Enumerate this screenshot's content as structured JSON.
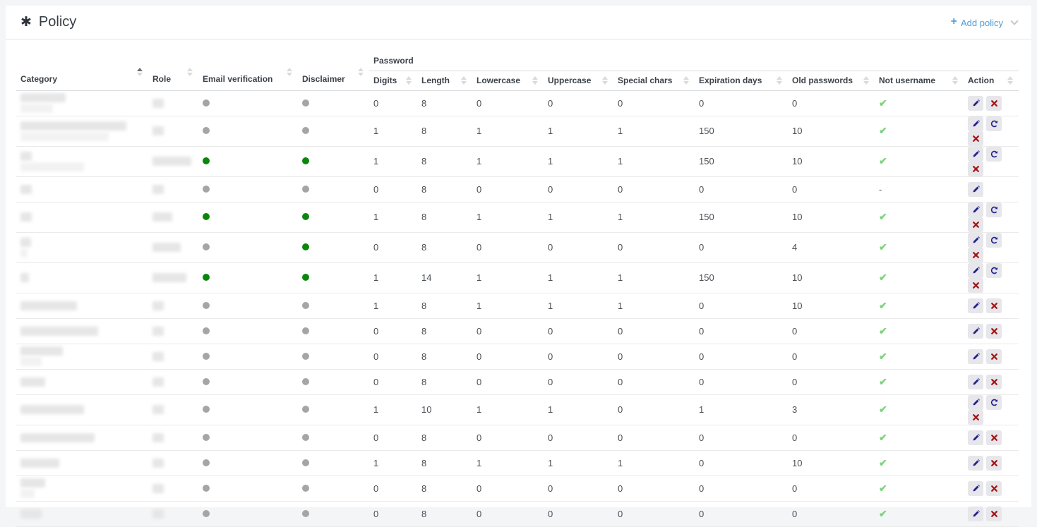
{
  "page": {
    "title": "Policy"
  },
  "toolbar": {
    "add_policy_label": "Add policy"
  },
  "colors": {
    "accent_blue": "#4d9dd6",
    "green_dot": "#0a870a",
    "gray_dot": "#a5a5a5",
    "check_green": "#7bd47b",
    "edit_icon_blue": "#23238f",
    "delete_icon_red": "#a31515"
  },
  "table": {
    "group_header": "Password",
    "columns": {
      "category": {
        "label": "Category",
        "sort": "asc"
      },
      "role": {
        "label": "Role"
      },
      "email_verification": {
        "label": "Email verification"
      },
      "disclaimer": {
        "label": "Disclaimer"
      },
      "action": {
        "label": "Action"
      }
    },
    "password_columns": [
      "Digits",
      "Length",
      "Lowercase",
      "Uppercase",
      "Special chars",
      "Expiration days",
      "Old passwords",
      "Not username"
    ],
    "rows": [
      {
        "category_blur": [
          64,
          46
        ],
        "role_blur": [
          16
        ],
        "email_verification": "off",
        "disclaimer": "off",
        "digits": "0",
        "length": "8",
        "lowercase": "0",
        "uppercase": "0",
        "special_chars": "0",
        "expiration_days": "0",
        "old_passwords": "0",
        "not_username": "yes",
        "actions": [
          "edit",
          "delete"
        ]
      },
      {
        "category_blur": [
          150,
          125
        ],
        "role_blur": [
          16
        ],
        "email_verification": "off",
        "disclaimer": "off",
        "digits": "1",
        "length": "8",
        "lowercase": "1",
        "uppercase": "1",
        "special_chars": "1",
        "expiration_days": "150",
        "old_passwords": "10",
        "not_username": "yes",
        "actions": [
          "edit",
          "refresh",
          "delete"
        ]
      },
      {
        "category_blur": [
          16,
          90
        ],
        "role_blur": [
          55
        ],
        "email_verification": "on",
        "disclaimer": "on",
        "digits": "1",
        "length": "8",
        "lowercase": "1",
        "uppercase": "1",
        "special_chars": "1",
        "expiration_days": "150",
        "old_passwords": "10",
        "not_username": "yes",
        "actions": [
          "edit",
          "refresh",
          "delete"
        ]
      },
      {
        "category_blur": [
          16
        ],
        "role_blur": [
          16
        ],
        "email_verification": "off",
        "disclaimer": "off",
        "digits": "0",
        "length": "8",
        "lowercase": "0",
        "uppercase": "0",
        "special_chars": "0",
        "expiration_days": "0",
        "old_passwords": "0",
        "not_username": "-",
        "actions": [
          "edit"
        ]
      },
      {
        "category_blur": [
          16
        ],
        "role_blur": [
          28
        ],
        "email_verification": "on",
        "disclaimer": "on",
        "digits": "1",
        "length": "8",
        "lowercase": "1",
        "uppercase": "1",
        "special_chars": "1",
        "expiration_days": "150",
        "old_passwords": "10",
        "not_username": "yes",
        "actions": [
          "edit",
          "refresh",
          "delete"
        ]
      },
      {
        "category_blur": [
          15,
          10
        ],
        "role_blur": [
          40
        ],
        "email_verification": "off",
        "disclaimer": "on",
        "digits": "0",
        "length": "8",
        "lowercase": "0",
        "uppercase": "0",
        "special_chars": "0",
        "expiration_days": "0",
        "old_passwords": "4",
        "not_username": "yes",
        "actions": [
          "edit",
          "refresh",
          "delete"
        ]
      },
      {
        "category_blur": [
          12
        ],
        "role_blur": [
          48
        ],
        "email_verification": "on",
        "disclaimer": "on",
        "digits": "1",
        "length": "14",
        "lowercase": "1",
        "uppercase": "1",
        "special_chars": "1",
        "expiration_days": "150",
        "old_passwords": "10",
        "not_username": "yes",
        "actions": [
          "edit",
          "refresh",
          "delete"
        ]
      },
      {
        "category_blur": [
          80
        ],
        "role_blur": [
          16
        ],
        "email_verification": "off",
        "disclaimer": "off",
        "digits": "1",
        "length": "8",
        "lowercase": "1",
        "uppercase": "1",
        "special_chars": "1",
        "expiration_days": "0",
        "old_passwords": "10",
        "not_username": "yes",
        "actions": [
          "edit",
          "delete"
        ]
      },
      {
        "category_blur": [
          110
        ],
        "role_blur": [
          16
        ],
        "email_verification": "off",
        "disclaimer": "off",
        "digits": "0",
        "length": "8",
        "lowercase": "0",
        "uppercase": "0",
        "special_chars": "0",
        "expiration_days": "0",
        "old_passwords": "0",
        "not_username": "yes",
        "actions": [
          "edit",
          "delete"
        ]
      },
      {
        "category_blur": [
          60,
          30
        ],
        "role_blur": [
          16
        ],
        "email_verification": "off",
        "disclaimer": "off",
        "digits": "0",
        "length": "8",
        "lowercase": "0",
        "uppercase": "0",
        "special_chars": "0",
        "expiration_days": "0",
        "old_passwords": "0",
        "not_username": "yes",
        "actions": [
          "edit",
          "delete"
        ]
      },
      {
        "category_blur": [
          35
        ],
        "role_blur": [
          16
        ],
        "email_verification": "off",
        "disclaimer": "off",
        "digits": "0",
        "length": "8",
        "lowercase": "0",
        "uppercase": "0",
        "special_chars": "0",
        "expiration_days": "0",
        "old_passwords": "0",
        "not_username": "yes",
        "actions": [
          "edit",
          "delete"
        ]
      },
      {
        "category_blur": [
          90
        ],
        "role_blur": [
          16
        ],
        "email_verification": "off",
        "disclaimer": "off",
        "digits": "1",
        "length": "10",
        "lowercase": "1",
        "uppercase": "1",
        "special_chars": "0",
        "expiration_days": "1",
        "old_passwords": "3",
        "not_username": "yes",
        "actions": [
          "edit",
          "refresh",
          "delete"
        ]
      },
      {
        "category_blur": [
          105
        ],
        "role_blur": [
          16
        ],
        "email_verification": "off",
        "disclaimer": "off",
        "digits": "0",
        "length": "8",
        "lowercase": "0",
        "uppercase": "0",
        "special_chars": "0",
        "expiration_days": "0",
        "old_passwords": "0",
        "not_username": "yes",
        "actions": [
          "edit",
          "delete"
        ]
      },
      {
        "category_blur": [
          55
        ],
        "role_blur": [
          16
        ],
        "email_verification": "off",
        "disclaimer": "off",
        "digits": "1",
        "length": "8",
        "lowercase": "1",
        "uppercase": "1",
        "special_chars": "1",
        "expiration_days": "0",
        "old_passwords": "10",
        "not_username": "yes",
        "actions": [
          "edit",
          "delete"
        ]
      },
      {
        "category_blur": [
          35,
          20
        ],
        "role_blur": [
          16
        ],
        "email_verification": "off",
        "disclaimer": "off",
        "digits": "0",
        "length": "8",
        "lowercase": "0",
        "uppercase": "0",
        "special_chars": "0",
        "expiration_days": "0",
        "old_passwords": "0",
        "not_username": "yes",
        "actions": [
          "edit",
          "delete"
        ]
      },
      {
        "category_blur": [
          30
        ],
        "role_blur": [
          16
        ],
        "email_verification": "off",
        "disclaimer": "off",
        "digits": "0",
        "length": "8",
        "lowercase": "0",
        "uppercase": "0",
        "special_chars": "0",
        "expiration_days": "0",
        "old_passwords": "0",
        "not_username": "yes",
        "actions": [
          "edit",
          "delete"
        ]
      }
    ]
  }
}
